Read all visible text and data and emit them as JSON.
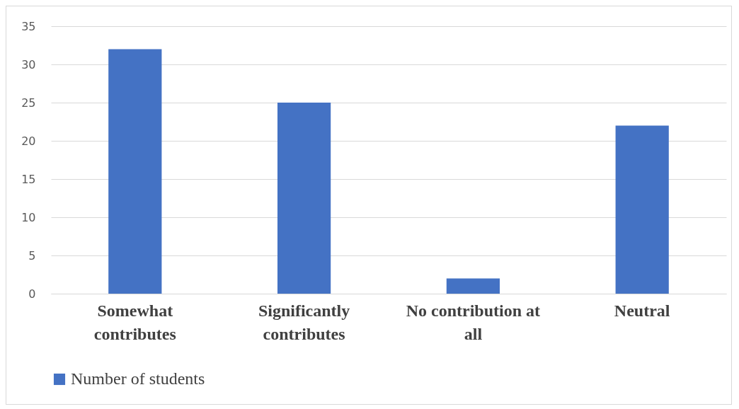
{
  "chart_data": {
    "type": "bar",
    "categories": [
      "Somewhat contributes",
      "Significantly contributes",
      "No contribution at all",
      "Neutral"
    ],
    "series": [
      {
        "name": "Number of students",
        "color": "#4472c4",
        "values": [
          32,
          25,
          2,
          22
        ]
      }
    ],
    "ylim": [
      0,
      35
    ],
    "yticks": [
      0,
      5,
      10,
      15,
      20,
      25,
      30,
      35
    ],
    "grid": "y",
    "legend": "bottom"
  }
}
